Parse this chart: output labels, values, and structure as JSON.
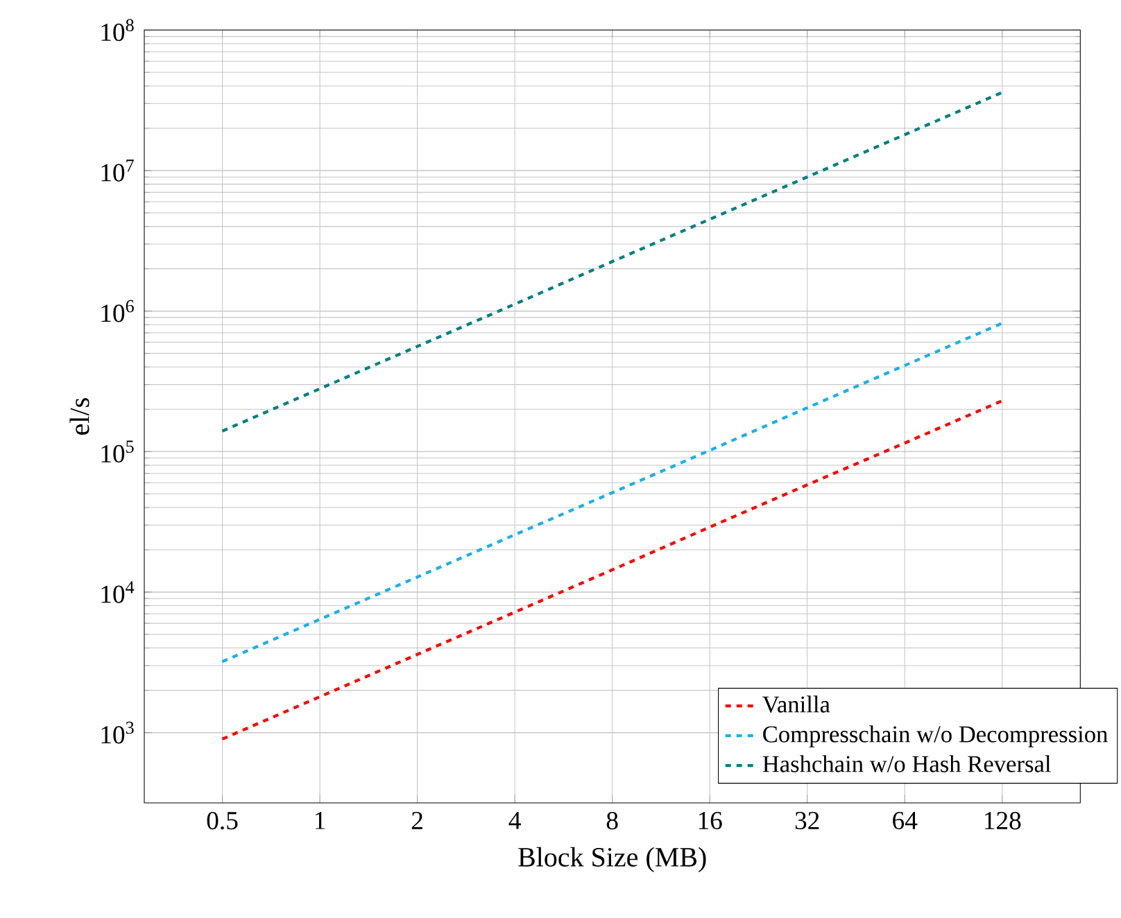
{
  "chart_data": {
    "type": "line",
    "xlabel": "Block Size (MB)",
    "ylabel": "el/s",
    "x": [
      0.5,
      1,
      2,
      4,
      8,
      16,
      32,
      64,
      128
    ],
    "series": [
      {
        "name": "Vanilla",
        "color": "#ff0000",
        "values": [
          900,
          1800,
          3600,
          7200,
          14400,
          29000,
          58000,
          115000,
          230000
        ]
      },
      {
        "name": "Compresschain w/o Decompression",
        "color": "#1ab0ea",
        "values": [
          3200,
          6400,
          12800,
          25600,
          51000,
          102000,
          205000,
          410000,
          820000
        ]
      },
      {
        "name": "Hashchain w/o Hash Reversal",
        "color": "#008080",
        "values": [
          140000,
          280000,
          560000,
          1120000,
          2250000,
          4500000,
          9000000,
          18000000,
          36000000
        ]
      }
    ],
    "log": "xy",
    "xlim": [
      0.287,
      223
    ],
    "ylim": [
      316,
      100000000
    ],
    "xticks": [
      0.5,
      1,
      2,
      4,
      8,
      16,
      32,
      64,
      128
    ],
    "yticks": [
      {
        "value": 1000,
        "label": "10$^{3}$"
      },
      {
        "value": 10000,
        "label": "10$^{4}$"
      },
      {
        "value": 100000,
        "label": "10$^{5}$"
      },
      {
        "value": 1000000,
        "label": "10$^{6}$"
      },
      {
        "value": 10000000,
        "label": "10$^{7}$"
      },
      {
        "value": 100000000,
        "label": "10$^{8}$"
      }
    ],
    "grid": true,
    "legend": "bottom right",
    "line_style": "dashed",
    "marker": "none"
  }
}
